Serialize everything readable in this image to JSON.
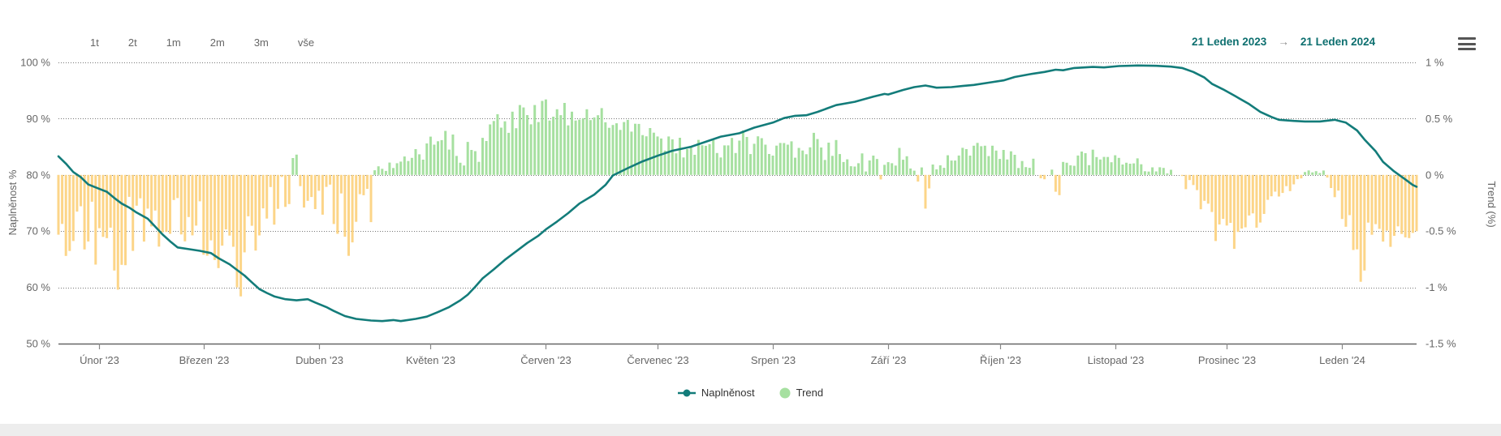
{
  "header": {
    "range_buttons": [
      "1t",
      "2t",
      "1m",
      "2m",
      "3m",
      "vše"
    ],
    "date_from": "21 Leden 2023",
    "date_to": "21 Leden 2024",
    "arrow": "→",
    "icons": {
      "menu": "hamburger-menu-icon"
    }
  },
  "legend": [
    {
      "label": "Naplněnost",
      "marker": "teal-line-dot"
    },
    {
      "label": "Trend",
      "marker": "green-circle"
    }
  ],
  "colors": {
    "line": "#137c7a",
    "bar_positive": "#a6e0a0",
    "bar_negative": "#fcd588",
    "axis_text": "#666666",
    "date_text": "#0d6f6f",
    "grid": "#777777",
    "axis_line": "#666666"
  },
  "chart_data": {
    "type": [
      "line",
      "bar"
    ],
    "title": "",
    "grid": "dotted-horizontal",
    "legend_position": "bottom-center",
    "x_axis": {
      "start_label": "21 Leden 2023",
      "end_label": "21 Leden 2024",
      "days_total": 365,
      "months": [
        {
          "label": "Únor '23",
          "start_day": 11
        },
        {
          "label": "Březen '23",
          "start_day": 39
        },
        {
          "label": "Duben '23",
          "start_day": 70
        },
        {
          "label": "Květen '23",
          "start_day": 100
        },
        {
          "label": "Červen '23",
          "start_day": 131
        },
        {
          "label": "Červenec '23",
          "start_day": 161
        },
        {
          "label": "Srpen '23",
          "start_day": 192
        },
        {
          "label": "Září '23",
          "start_day": 223
        },
        {
          "label": "Říjen '23",
          "start_day": 253
        },
        {
          "label": "Listopad '23",
          "start_day": 284
        },
        {
          "label": "Prosinec '23",
          "start_day": 314
        },
        {
          "label": "Leden '24",
          "start_day": 345
        }
      ]
    },
    "y_axis_left": {
      "title": "Naplněnost %",
      "min": 50,
      "max": 100,
      "tick_values": [
        100,
        90,
        80,
        70,
        60,
        50
      ],
      "tick_labels": [
        "100 %",
        "90 %",
        "80 %",
        "70 %",
        "60 %",
        "50 %"
      ]
    },
    "y_axis_right": {
      "title": "Trend (%)",
      "min": -1.5,
      "max": 1,
      "tick_values": [
        1,
        0.5,
        0,
        -0.5,
        -1,
        -1.5
      ],
      "tick_labels": [
        "1 %",
        "0.5 %",
        "0 %",
        "-0.5 %",
        "-1 %",
        "-1.5 %"
      ]
    },
    "series": [
      {
        "name": "Naplněnost",
        "type": "line",
        "axis": "left",
        "points": [
          [
            0,
            83.3
          ],
          [
            2,
            82.0
          ],
          [
            4,
            80.5
          ],
          [
            6,
            79.6
          ],
          [
            8,
            78.3
          ],
          [
            11,
            77.5
          ],
          [
            13,
            77.0
          ],
          [
            15,
            75.9
          ],
          [
            17,
            74.9
          ],
          [
            19,
            74.2
          ],
          [
            21,
            73.3
          ],
          [
            24,
            72.2
          ],
          [
            26,
            70.8
          ],
          [
            28,
            69.4
          ],
          [
            30,
            68.2
          ],
          [
            32,
            67.1
          ],
          [
            35,
            66.8
          ],
          [
            38,
            66.5
          ],
          [
            41,
            66.1
          ],
          [
            43,
            65.2
          ],
          [
            46,
            64.1
          ],
          [
            48,
            63.1
          ],
          [
            50,
            62.1
          ],
          [
            52,
            60.9
          ],
          [
            54,
            59.7
          ],
          [
            56,
            59.0
          ],
          [
            58,
            58.4
          ],
          [
            61,
            57.9
          ],
          [
            64,
            57.7
          ],
          [
            67,
            57.9
          ],
          [
            69,
            57.3
          ],
          [
            72,
            56.5
          ],
          [
            74,
            55.8
          ],
          [
            77,
            54.9
          ],
          [
            80,
            54.4
          ],
          [
            84,
            54.1
          ],
          [
            87,
            54.0
          ],
          [
            90,
            54.2
          ],
          [
            92,
            54.0
          ],
          [
            96,
            54.4
          ],
          [
            99,
            54.8
          ],
          [
            102,
            55.6
          ],
          [
            105,
            56.5
          ],
          [
            108,
            57.7
          ],
          [
            110,
            58.7
          ],
          [
            112,
            60.1
          ],
          [
            114,
            61.6
          ],
          [
            117,
            63.2
          ],
          [
            120,
            64.9
          ],
          [
            123,
            66.4
          ],
          [
            126,
            67.9
          ],
          [
            129,
            69.2
          ],
          [
            131,
            70.3
          ],
          [
            134,
            71.7
          ],
          [
            137,
            73.2
          ],
          [
            140,
            74.9
          ],
          [
            144,
            76.5
          ],
          [
            147,
            78.2
          ],
          [
            149,
            79.9
          ],
          [
            153,
            81.2
          ],
          [
            157,
            82.4
          ],
          [
            161,
            83.4
          ],
          [
            165,
            84.3
          ],
          [
            170,
            85.0
          ],
          [
            174,
            85.9
          ],
          [
            178,
            86.8
          ],
          [
            183,
            87.4
          ],
          [
            187,
            88.4
          ],
          [
            192,
            89.3
          ],
          [
            195,
            90.1
          ],
          [
            198,
            90.5
          ],
          [
            201,
            90.6
          ],
          [
            204,
            91.2
          ],
          [
            209,
            92.4
          ],
          [
            214,
            93.0
          ],
          [
            219,
            93.9
          ],
          [
            222,
            94.4
          ],
          [
            223,
            94.3
          ],
          [
            227,
            95.1
          ],
          [
            230,
            95.6
          ],
          [
            233,
            95.9
          ],
          [
            236,
            95.5
          ],
          [
            240,
            95.6
          ],
          [
            243,
            95.8
          ],
          [
            246,
            96.0
          ],
          [
            250,
            96.4
          ],
          [
            254,
            96.8
          ],
          [
            257,
            97.4
          ],
          [
            261,
            97.9
          ],
          [
            265,
            98.3
          ],
          [
            268,
            98.7
          ],
          [
            270,
            98.6
          ],
          [
            273,
            99.0
          ],
          [
            278,
            99.2
          ],
          [
            281,
            99.1
          ],
          [
            285,
            99.35
          ],
          [
            290,
            99.45
          ],
          [
            295,
            99.4
          ],
          [
            299,
            99.25
          ],
          [
            302,
            99.0
          ],
          [
            305,
            98.3
          ],
          [
            308,
            97.3
          ],
          [
            310,
            96.2
          ],
          [
            313,
            95.2
          ],
          [
            316,
            94.1
          ],
          [
            320,
            92.6
          ],
          [
            323,
            91.2
          ],
          [
            326,
            90.3
          ],
          [
            328,
            89.8
          ],
          [
            332,
            89.6
          ],
          [
            335,
            89.5
          ],
          [
            339,
            89.5
          ],
          [
            343,
            89.8
          ],
          [
            346,
            89.3
          ],
          [
            349,
            87.9
          ],
          [
            351,
            86.3
          ],
          [
            354,
            84.2
          ],
          [
            356,
            82.3
          ],
          [
            359,
            80.6
          ],
          [
            362,
            79.2
          ],
          [
            364,
            78.2
          ],
          [
            365,
            77.9
          ]
        ]
      },
      {
        "name": "Trend",
        "type": "bar",
        "axis": "right",
        "anchors": [
          [
            0,
            -0.45,
            0.25
          ],
          [
            8,
            -0.5,
            0.3
          ],
          [
            14,
            -0.55,
            0.35
          ],
          [
            22,
            -0.45,
            0.3
          ],
          [
            30,
            -0.35,
            0.25
          ],
          [
            38,
            -0.45,
            0.3
          ],
          [
            46,
            -0.55,
            0.35
          ],
          [
            52,
            -0.45,
            0.3
          ],
          [
            58,
            -0.25,
            0.2
          ],
          [
            62,
            -0.12,
            0.15
          ],
          [
            66,
            -0.3,
            0.2
          ],
          [
            72,
            -0.2,
            0.15
          ],
          [
            78,
            -0.45,
            0.25
          ],
          [
            83,
            -0.18,
            0.12
          ],
          [
            86,
            0.05,
            0.05
          ],
          [
            92,
            0.12,
            0.08
          ],
          [
            98,
            0.2,
            0.1
          ],
          [
            104,
            0.3,
            0.12
          ],
          [
            108,
            0.25,
            0.15
          ],
          [
            112,
            0.12,
            0.1
          ],
          [
            116,
            0.42,
            0.12
          ],
          [
            122,
            0.5,
            0.12
          ],
          [
            128,
            0.56,
            0.12
          ],
          [
            134,
            0.55,
            0.12
          ],
          [
            140,
            0.5,
            0.1
          ],
          [
            146,
            0.52,
            0.1
          ],
          [
            152,
            0.45,
            0.12
          ],
          [
            158,
            0.35,
            0.12
          ],
          [
            164,
            0.28,
            0.1
          ],
          [
            170,
            0.22,
            0.1
          ],
          [
            178,
            0.25,
            0.12
          ],
          [
            186,
            0.3,
            0.12
          ],
          [
            194,
            0.22,
            0.1
          ],
          [
            202,
            0.28,
            0.12
          ],
          [
            210,
            0.2,
            0.1
          ],
          [
            218,
            0.12,
            0.1
          ],
          [
            226,
            0.16,
            0.1
          ],
          [
            231,
            0.0,
            0.08
          ],
          [
            236,
            0.05,
            0.05
          ],
          [
            242,
            0.2,
            0.1
          ],
          [
            248,
            0.28,
            0.08
          ],
          [
            254,
            0.18,
            0.08
          ],
          [
            260,
            0.12,
            0.08
          ],
          [
            265,
            0.0,
            0.06
          ],
          [
            270,
            0.08,
            0.06
          ],
          [
            276,
            0.15,
            0.08
          ],
          [
            282,
            0.18,
            0.06
          ],
          [
            288,
            0.15,
            0.08
          ],
          [
            294,
            0.05,
            0.04
          ],
          [
            300,
            0.02,
            0.02
          ],
          [
            304,
            -0.1,
            0.08
          ],
          [
            308,
            -0.35,
            0.15
          ],
          [
            312,
            -0.5,
            0.15
          ],
          [
            316,
            -0.55,
            0.12
          ],
          [
            320,
            -0.45,
            0.15
          ],
          [
            324,
            -0.3,
            0.12
          ],
          [
            328,
            -0.15,
            0.08
          ],
          [
            332,
            -0.1,
            0.06
          ],
          [
            336,
            0.02,
            0.03
          ],
          [
            340,
            0.05,
            0.03
          ],
          [
            343,
            -0.1,
            0.1
          ],
          [
            346,
            -0.35,
            0.15
          ],
          [
            350,
            -0.7,
            0.2
          ],
          [
            353,
            -0.45,
            0.12
          ],
          [
            356,
            -0.55,
            0.1
          ],
          [
            360,
            -0.55,
            0.1
          ],
          [
            363,
            -0.5,
            0.08
          ],
          [
            365,
            -0.47,
            0.05
          ]
        ],
        "spikes": {
          "15": -0.85,
          "16": -1.02,
          "17": -0.8,
          "48": -1.0,
          "49": -1.08,
          "63": 0.15,
          "64": 0.18,
          "77": -0.55,
          "78": -0.72,
          "79": -0.6,
          "84": -0.42,
          "221": -0.04,
          "233": -0.3,
          "234": -0.12,
          "268": -0.15,
          "269": -0.18,
          "350": -0.95,
          "351": -0.85
        }
      }
    ]
  }
}
